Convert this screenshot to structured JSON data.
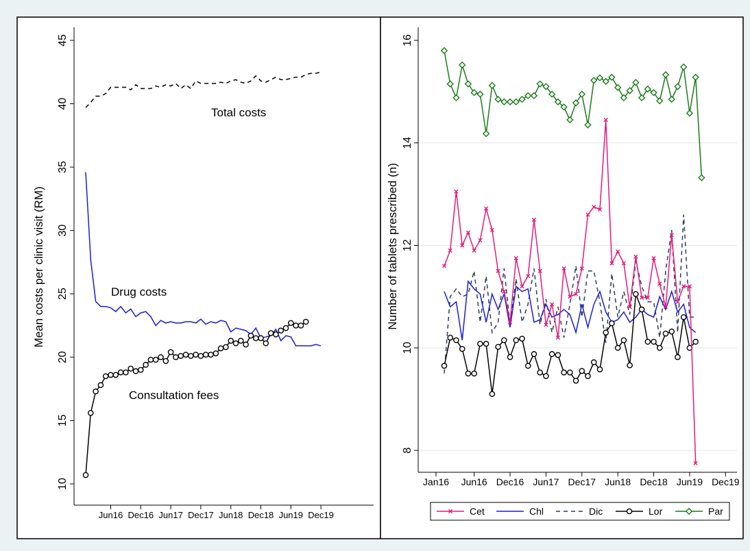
{
  "colors": {
    "background": "#eaf2f3",
    "panel": "#ffffff",
    "total_costs": "#000000",
    "drug_costs": "#1b1bd6",
    "consultation_fees": "#000000",
    "Cet": "#e6197a",
    "Chl": "#1b1bd6",
    "Dic": "#2a3a55",
    "Lor": "#000000",
    "Par": "#1a7a1a"
  },
  "chart_data": [
    {
      "type": "line",
      "title": "",
      "xlabel": "",
      "ylabel": "Mean costs per clinic visit (RM)",
      "ylim": [
        10,
        45
      ],
      "yticks": [
        10,
        15,
        20,
        25,
        30,
        35,
        40,
        45
      ],
      "x_tick_labels": [
        "Jun16",
        "Dec16",
        "Jun17",
        "Dec17",
        "Jun18",
        "Dec18",
        "Jun19",
        "Dec19"
      ],
      "x_start": "Jan16",
      "grid": false,
      "annotations": [
        {
          "text": "Total costs",
          "series": "Total costs"
        },
        {
          "text": "Drug costs",
          "series": "Drug costs"
        },
        {
          "text": "Consultation fees",
          "series": "Consultation fees"
        }
      ],
      "series": [
        {
          "name": "Total costs",
          "style": "dashed",
          "values": [
            39.7,
            40.1,
            40.6,
            40.6,
            40.8,
            41.3,
            41.3,
            41.3,
            41.3,
            41.1,
            41.5,
            41.2,
            41.2,
            41.2,
            41.4,
            41.3,
            41.5,
            41.4,
            41.6,
            41.2,
            41.5,
            41.2,
            41.8,
            41.6,
            41.6,
            41.6,
            41.6,
            41.7,
            41.6,
            41.8,
            41.9,
            41.7,
            41.6,
            41.8,
            42.2,
            41.8,
            41.7,
            41.9,
            42.1,
            41.9,
            41.9,
            42.0,
            42.1,
            42.1,
            42.3,
            42.4,
            42.4,
            42.5
          ]
        },
        {
          "name": "Drug costs",
          "style": "solid",
          "values": [
            34.6,
            27.7,
            24.4,
            24.0,
            24.0,
            23.9,
            23.6,
            24.0,
            23.5,
            23.8,
            23.2,
            23.5,
            23.6,
            23.2,
            22.5,
            22.9,
            22.7,
            22.8,
            22.7,
            22.7,
            22.8,
            22.8,
            22.7,
            23.0,
            22.6,
            22.8,
            22.7,
            22.9,
            22.8,
            22.0,
            22.3,
            22.2,
            22.1,
            21.8,
            22.3,
            21.5,
            21.6,
            21.7,
            22.2,
            21.3,
            21.7,
            21.6,
            20.9,
            20.9,
            20.9,
            20.9,
            21.0,
            20.9
          ]
        },
        {
          "name": "Consultation fees",
          "style": "solid-circle",
          "values": [
            10.7,
            15.6,
            17.3,
            17.8,
            18.5,
            18.6,
            18.6,
            18.8,
            18.8,
            19.1,
            18.9,
            19.0,
            19.4,
            19.8,
            19.8,
            20.0,
            19.7,
            20.4,
            20.0,
            20.1,
            20.2,
            20.1,
            20.2,
            20.1,
            20.2,
            20.2,
            20.3,
            20.7,
            20.8,
            21.3,
            21.1,
            21.3,
            21.0,
            21.7,
            21.5,
            21.5,
            21.1,
            21.9,
            21.8,
            22.1,
            22.3,
            22.7,
            22.5,
            22.5,
            22.8
          ]
        }
      ]
    },
    {
      "type": "line",
      "title": "",
      "xlabel": "",
      "ylabel": "Number of tablets prescribed (n)",
      "ylim": [
        7.5,
        16
      ],
      "yticks": [
        8,
        10,
        12,
        14,
        16
      ],
      "x_tick_labels": [
        "Jan16",
        "Jun16",
        "Dec16",
        "Jun17",
        "Dec17",
        "Jun18",
        "Dec18",
        "Jun19",
        "Dec19"
      ],
      "grid": true,
      "legend_position": "bottom",
      "series": [
        {
          "name": "Cet",
          "style": "solid-x",
          "values": [
            11.6,
            11.9,
            13.05,
            12.0,
            12.25,
            11.9,
            12.1,
            12.72,
            12.3,
            11.5,
            11.1,
            10.5,
            11.75,
            11.2,
            11.4,
            12.5,
            11.5,
            10.45,
            10.85,
            10.2,
            11.55,
            11.0,
            11.05,
            11.55,
            12.6,
            12.75,
            12.7,
            14.45,
            11.65,
            11.88,
            11.65,
            10.8,
            11.78,
            10.98,
            10.98,
            11.75,
            11.25,
            10.8,
            12.2,
            10.9,
            11.2,
            11.2,
            7.75
          ]
        },
        {
          "name": "Chl",
          "style": "solid",
          "values": [
            11.1,
            10.8,
            10.9,
            10.15,
            11.3,
            11.15,
            11.05,
            10.5,
            11.05,
            10.75,
            11.05,
            10.4,
            11.2,
            11.1,
            11.15,
            10.5,
            10.55,
            10.85,
            10.6,
            10.65,
            10.75,
            10.65,
            10.3,
            10.85,
            10.4,
            10.85,
            11.1,
            10.7,
            10.5,
            10.55,
            10.7,
            10.5,
            10.6,
            10.75,
            10.65,
            10.6,
            11.0,
            10.75,
            11.1,
            10.7,
            10.85,
            10.4,
            10.3
          ]
        },
        {
          "name": "Dic",
          "style": "dashed",
          "values": [
            9.5,
            11.0,
            11.15,
            11.0,
            11.05,
            11.5,
            10.5,
            11.4,
            10.3,
            10.5,
            11.55,
            10.45,
            11.35,
            10.5,
            10.85,
            11.55,
            10.45,
            10.95,
            10.3,
            10.8,
            10.2,
            10.85,
            11.6,
            10.6,
            11.5,
            11.5,
            10.9,
            10.1,
            11.45,
            10.6,
            11.1,
            10.65,
            11.7,
            11.2,
            10.9,
            10.9,
            10.2,
            11.5,
            12.3,
            10.3,
            12.6,
            10.6,
            10.6
          ]
        },
        {
          "name": "Lor",
          "style": "solid-circle",
          "values": [
            9.65,
            10.2,
            10.15,
            9.98,
            9.5,
            9.5,
            10.08,
            10.08,
            9.1,
            10.02,
            10.15,
            9.82,
            10.15,
            10.18,
            9.65,
            9.88,
            9.52,
            9.45,
            9.88,
            9.86,
            9.52,
            9.52,
            9.36,
            9.55,
            9.45,
            9.72,
            9.58,
            10.3,
            10.48,
            10.0,
            10.15,
            9.66,
            11.05,
            10.75,
            10.12,
            10.12,
            10.0,
            10.28,
            10.32,
            9.82,
            10.6,
            10.0,
            10.12
          ]
        },
        {
          "name": "Par",
          "style": "solid-diamond",
          "values": [
            15.8,
            15.15,
            14.88,
            15.52,
            15.15,
            14.98,
            14.95,
            14.18,
            15.12,
            14.85,
            14.8,
            14.8,
            14.8,
            14.85,
            14.92,
            14.92,
            15.15,
            15.1,
            14.95,
            14.8,
            14.7,
            14.45,
            14.78,
            14.95,
            14.35,
            15.22,
            15.27,
            15.2,
            15.28,
            15.08,
            14.88,
            15.02,
            15.18,
            14.88,
            15.05,
            14.98,
            14.82,
            15.33,
            14.85,
            15.1,
            15.48,
            14.58,
            15.28,
            13.32
          ]
        }
      ]
    }
  ]
}
